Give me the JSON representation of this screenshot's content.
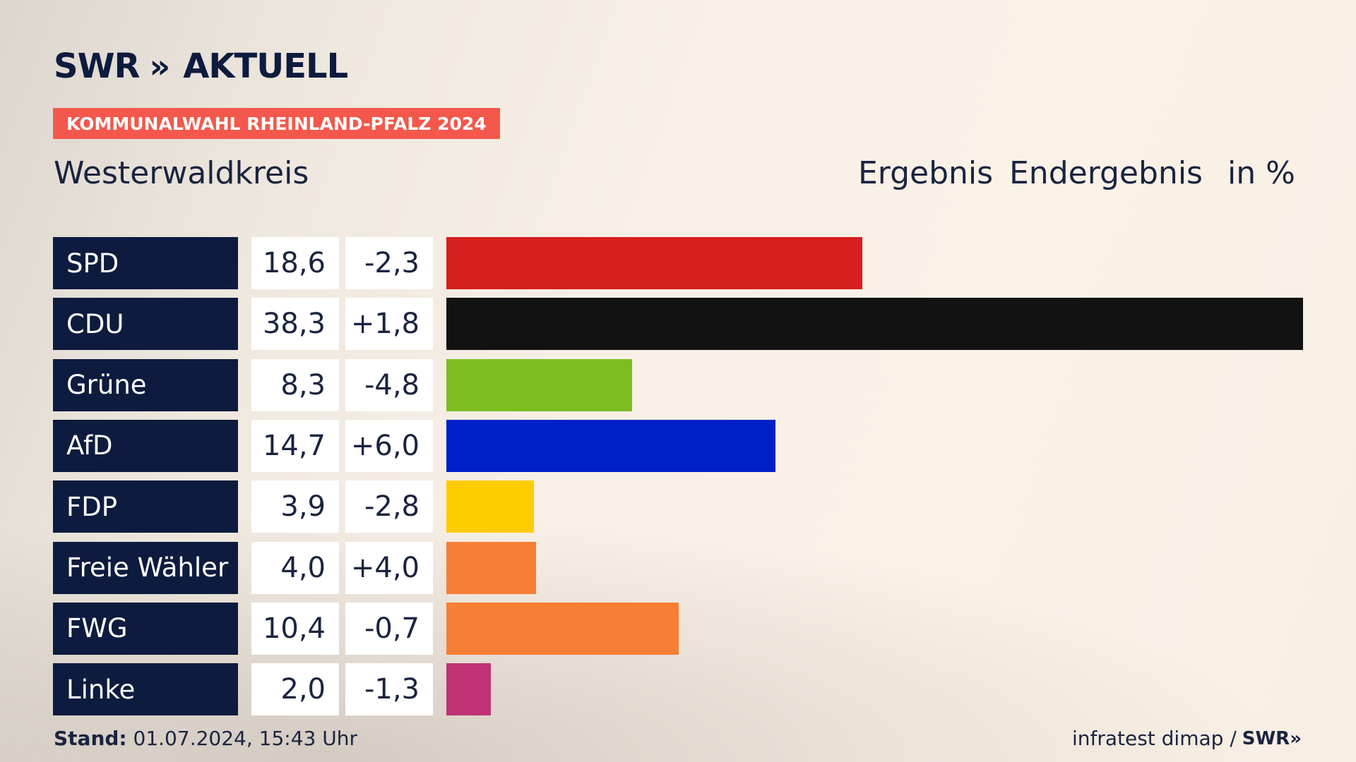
{
  "brand": {
    "name": "SWR",
    "chevrons": "»",
    "suffix": "AKTUELL"
  },
  "tag": "KOMMUNALWAHL RHEINLAND-PFALZ 2024",
  "region": "Westerwaldkreis",
  "headers": {
    "result": "Ergebnis",
    "status": "Endergebnis",
    "unit": "in %"
  },
  "footer": {
    "stand_label": "Stand:",
    "stand_value": "01.07.2024, 15:43 Uhr",
    "source": "infratest dimap /",
    "source_logo": "SWR»"
  },
  "chart_data": {
    "type": "bar",
    "orientation": "horizontal",
    "categories": [
      "SPD",
      "CDU",
      "Grüne",
      "AfD",
      "FDP",
      "Freie Wähler",
      "FWG",
      "Linke"
    ],
    "values": [
      18.6,
      38.3,
      8.3,
      14.7,
      3.9,
      4.0,
      10.4,
      2.0
    ],
    "value_labels": [
      "18,6",
      "38,3",
      "8,3",
      "14,7",
      "3,9",
      "4,0",
      "10,4",
      "2,0"
    ],
    "diff_labels": [
      "-2,3",
      "+1,8",
      "-4,8",
      "+6,0",
      "-2,8",
      "+4,0",
      "-0,7",
      "-1,3"
    ],
    "colors": [
      "#d61f1f",
      "#121212",
      "#7dbd1f",
      "#0021c9",
      "#ffcc00",
      "#f77f35",
      "#f77f35",
      "#bf3375"
    ],
    "xlim": [
      0,
      38.3
    ],
    "grid": false
  }
}
